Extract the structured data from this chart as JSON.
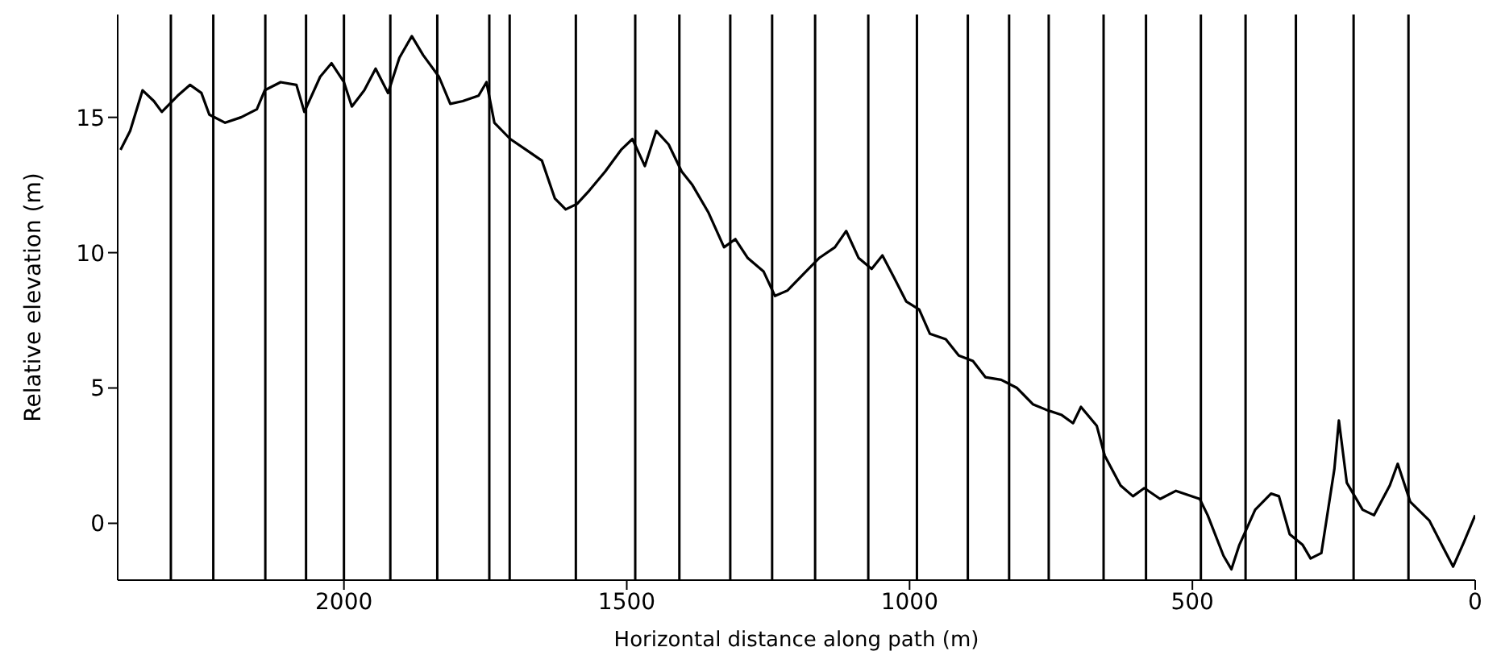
{
  "chart_data": {
    "type": "line",
    "xlabel": "Horizontal distance along path (m)",
    "ylabel": "Relative elevation (m)",
    "xlim": [
      2400,
      0
    ],
    "xticks": [
      2000,
      1500,
      1000,
      500,
      0
    ],
    "ylim": [
      -2.1,
      18.8
    ],
    "yticks": [
      0,
      5,
      10,
      15
    ],
    "grid": false,
    "legend": false,
    "marker": "none",
    "line_style": "solid",
    "series": [
      {
        "color": "#000000",
        "x": [
          2395,
          2378,
          2356,
          2336,
          2322,
          2294,
          2272,
          2252,
          2238,
          2210,
          2182,
          2154,
          2140,
          2112,
          2084,
          2070,
          2042,
          2022,
          2000,
          1986,
          1964,
          1944,
          1922,
          1902,
          1880,
          1860,
          1832,
          1812,
          1790,
          1762,
          1748,
          1734,
          1706,
          1678,
          1650,
          1627,
          1608,
          1588,
          1566,
          1538,
          1510,
          1490,
          1468,
          1448,
          1426,
          1403,
          1384,
          1356,
          1328,
          1308,
          1286,
          1258,
          1238,
          1216,
          1188,
          1160,
          1132,
          1112,
          1090,
          1067,
          1048,
          1028,
          1006,
          983,
          964,
          936,
          913,
          888,
          866,
          838,
          810,
          782,
          759,
          731,
          711,
          697,
          669,
          655,
          627,
          605,
          585,
          557,
          529,
          487,
          473,
          445,
          431,
          417,
          389,
          361,
          347,
          328,
          305,
          291,
          272,
          249,
          241,
          227,
          199,
          179,
          151,
          137,
          115,
          81,
          59,
          39,
          20,
          0
        ],
        "values": [
          13.8,
          14.5,
          16,
          15.6,
          15.2,
          15.8,
          16.2,
          15.9,
          15.1,
          14.8,
          15,
          15.3,
          16,
          16.3,
          16.2,
          15.2,
          16.5,
          17,
          16.3,
          15.4,
          16,
          16.8,
          15.9,
          17.2,
          18,
          17.3,
          16.5,
          15.5,
          15.6,
          15.8,
          16.3,
          14.8,
          14.2,
          13.8,
          13.4,
          12,
          11.6,
          11.8,
          12.3,
          13,
          13.8,
          14.2,
          13.2,
          14.5,
          14,
          13,
          12.5,
          11.5,
          10.2,
          10.5,
          9.8,
          9.3,
          8.4,
          8.6,
          9.2,
          9.8,
          10.2,
          10.8,
          9.8,
          9.4,
          9.9,
          9.1,
          8.2,
          7.9,
          7,
          6.8,
          6.2,
          6,
          5.4,
          5.3,
          5,
          4.4,
          4.2,
          4,
          3.7,
          4.3,
          3.6,
          2.5,
          1.4,
          1,
          1.3,
          0.9,
          1.2,
          0.9,
          0.3,
          -1.2,
          -1.7,
          -0.8,
          0.5,
          1.1,
          1,
          -0.4,
          -0.8,
          -1.3,
          -1.1,
          2,
          3.8,
          1.5,
          0.5,
          0.3,
          1.4,
          2.2,
          0.8,
          0.1,
          -0.8,
          -1.6,
          -0.7,
          0.3
        ]
      }
    ],
    "ref_lines": [
      {
        "axis": "x",
        "value": 2306,
        "color": "#000000"
      },
      {
        "axis": "x",
        "value": 2231,
        "color": "#000000"
      },
      {
        "axis": "x",
        "value": 2139,
        "color": "#000000"
      },
      {
        "axis": "x",
        "value": 2067,
        "color": "#000000"
      },
      {
        "axis": "x",
        "value": 2000,
        "color": "#000000"
      },
      {
        "axis": "x",
        "value": 1918,
        "color": "#000000"
      },
      {
        "axis": "x",
        "value": 1835,
        "color": "#000000"
      },
      {
        "axis": "x",
        "value": 1743,
        "color": "#000000"
      },
      {
        "axis": "x",
        "value": 1707,
        "color": "#000000"
      },
      {
        "axis": "x",
        "value": 1590,
        "color": "#000000"
      },
      {
        "axis": "x",
        "value": 1485,
        "color": "#000000"
      },
      {
        "axis": "x",
        "value": 1407,
        "color": "#000000"
      },
      {
        "axis": "x",
        "value": 1317,
        "color": "#000000"
      },
      {
        "axis": "x",
        "value": 1243,
        "color": "#000000"
      },
      {
        "axis": "x",
        "value": 1167,
        "color": "#000000"
      },
      {
        "axis": "x",
        "value": 1073,
        "color": "#000000"
      },
      {
        "axis": "x",
        "value": 987,
        "color": "#000000"
      },
      {
        "axis": "x",
        "value": 897,
        "color": "#000000"
      },
      {
        "axis": "x",
        "value": 824,
        "color": "#000000"
      },
      {
        "axis": "x",
        "value": 754,
        "color": "#000000"
      },
      {
        "axis": "x",
        "value": 657,
        "color": "#000000"
      },
      {
        "axis": "x",
        "value": 582,
        "color": "#000000"
      },
      {
        "axis": "x",
        "value": 485,
        "color": "#000000"
      },
      {
        "axis": "x",
        "value": 406,
        "color": "#000000"
      },
      {
        "axis": "x",
        "value": 317,
        "color": "#000000"
      },
      {
        "axis": "x",
        "value": 215,
        "color": "#000000"
      },
      {
        "axis": "x",
        "value": 118,
        "color": "#000000"
      }
    ]
  }
}
